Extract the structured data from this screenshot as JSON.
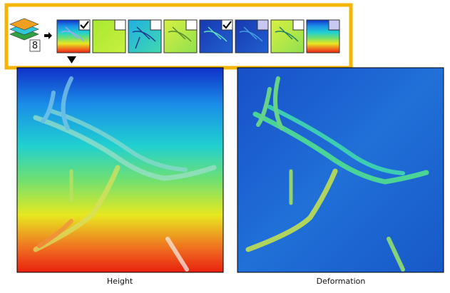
{
  "toolbar": {
    "layer_count": "8"
  },
  "images": [
    {
      "caption": "Height"
    },
    {
      "caption": "Deformation"
    }
  ]
}
